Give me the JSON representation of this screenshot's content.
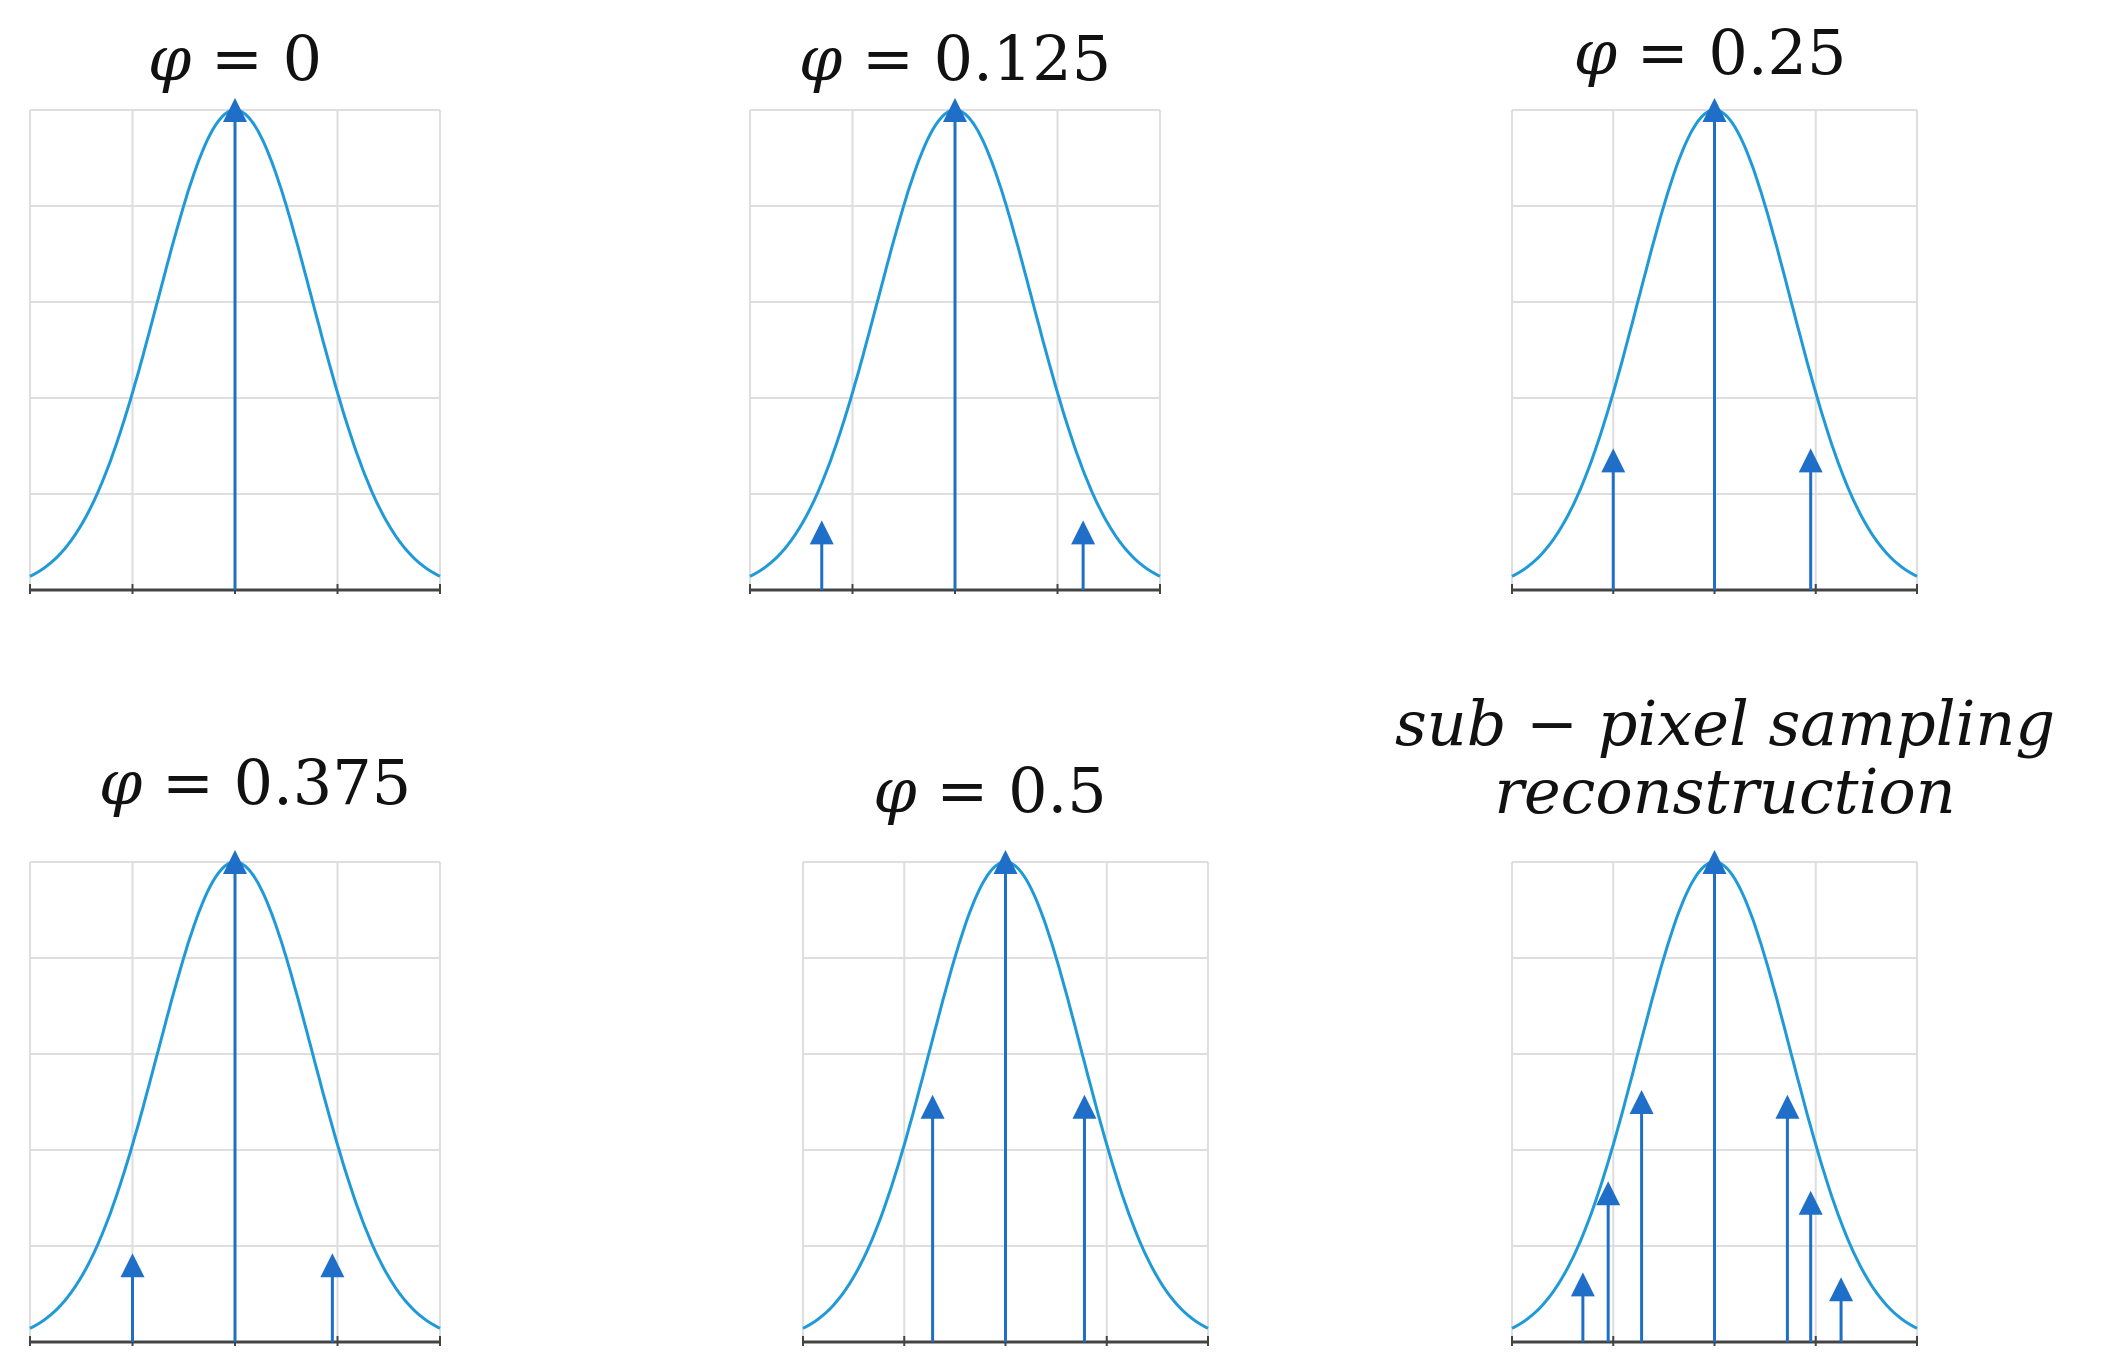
{
  "figure": {
    "colors": {
      "curve": "#1f9ad6",
      "stem": "#1f6fc9",
      "grid": "#dedede",
      "axis": "#444444"
    }
  },
  "chart_data": [
    {
      "type": "stem",
      "title": "φ = 0",
      "title_symbol": "φ",
      "title_value": "0",
      "xlim": [
        -2,
        2
      ],
      "ylim": [
        0,
        1
      ],
      "curve": "gaussian",
      "sigma": 0.75,
      "x": [
        0
      ],
      "y": [
        1
      ]
    },
    {
      "type": "stem",
      "title": "φ = 0.125",
      "title_symbol": "φ",
      "title_value": "0.125",
      "xlim": [
        -2,
        2
      ],
      "ylim": [
        0,
        1
      ],
      "curve": "gaussian",
      "sigma": 0.75,
      "x": [
        -1.3,
        0,
        1.25
      ],
      "y": [
        0.12,
        1,
        0.12
      ]
    },
    {
      "type": "stem",
      "title": "φ = 0.25",
      "title_symbol": "φ",
      "title_value": "0.25",
      "xlim": [
        -2,
        2
      ],
      "ylim": [
        0,
        1
      ],
      "curve": "gaussian",
      "sigma": 0.75,
      "x": [
        -1,
        0,
        0.95
      ],
      "y": [
        0.27,
        1,
        0.27
      ]
    },
    {
      "type": "stem",
      "title": "φ = 0.375",
      "title_symbol": "φ",
      "title_value": "0.375",
      "xlim": [
        -2,
        2
      ],
      "ylim": [
        0,
        1
      ],
      "curve": "gaussian",
      "sigma": 0.75,
      "x": [
        -1,
        0,
        0.95
      ],
      "y": [
        0.16,
        1,
        0.16
      ]
    },
    {
      "type": "stem",
      "title": "φ = 0.5",
      "title_symbol": "φ",
      "title_value": "0.5",
      "xlim": [
        -2,
        2
      ],
      "ylim": [
        0,
        1
      ],
      "curve": "gaussian",
      "sigma": 0.75,
      "x": [
        -0.72,
        0,
        0.78
      ],
      "y": [
        0.49,
        1,
        0.49
      ]
    },
    {
      "type": "stem",
      "title": "sub − pixel   sampling reconstruction",
      "title_line1": "sub − pixel    sampling",
      "title_line2": "reconstruction",
      "xlim": [
        -2,
        2
      ],
      "ylim": [
        0,
        1
      ],
      "curve": "gaussian",
      "sigma": 0.75,
      "x": [
        -1.3,
        -1.05,
        -0.72,
        0,
        0.72,
        0.95,
        1.25
      ],
      "y": [
        0.12,
        0.31,
        0.5,
        1,
        0.49,
        0.29,
        0.11
      ]
    }
  ]
}
